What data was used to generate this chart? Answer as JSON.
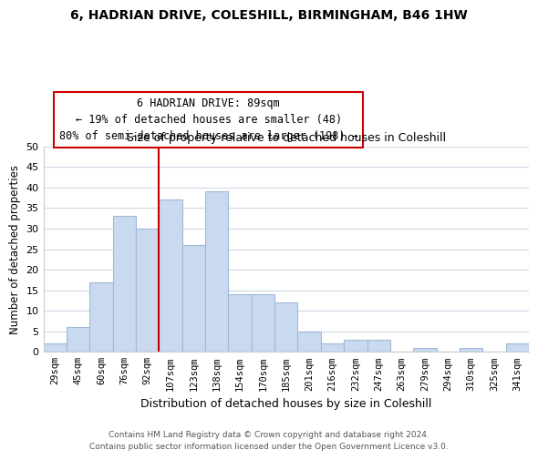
{
  "title": "6, HADRIAN DRIVE, COLESHILL, BIRMINGHAM, B46 1HW",
  "subtitle": "Size of property relative to detached houses in Coleshill",
  "xlabel": "Distribution of detached houses by size in Coleshill",
  "ylabel": "Number of detached properties",
  "bar_labels": [
    "29sqm",
    "45sqm",
    "60sqm",
    "76sqm",
    "92sqm",
    "107sqm",
    "123sqm",
    "138sqm",
    "154sqm",
    "170sqm",
    "185sqm",
    "201sqm",
    "216sqm",
    "232sqm",
    "247sqm",
    "263sqm",
    "279sqm",
    "294sqm",
    "310sqm",
    "325sqm",
    "341sqm"
  ],
  "bar_values": [
    2,
    6,
    17,
    33,
    30,
    37,
    26,
    39,
    14,
    14,
    12,
    5,
    2,
    3,
    3,
    0,
    1,
    0,
    1,
    0,
    2
  ],
  "bar_color": "#c9d9f0",
  "bar_edge_color": "#a0b8d8",
  "vline_index": 3,
  "vline_color": "#cc0000",
  "ylim": [
    0,
    50
  ],
  "yticks": [
    0,
    5,
    10,
    15,
    20,
    25,
    30,
    35,
    40,
    45,
    50
  ],
  "annotation_title": "6 HADRIAN DRIVE: 89sqm",
  "annotation_line1": "← 19% of detached houses are smaller (48)",
  "annotation_line2": "80% of semi-detached houses are larger (198) →",
  "annotation_box_edge": "#cc0000",
  "footer_line1": "Contains HM Land Registry data © Crown copyright and database right 2024.",
  "footer_line2": "Contains public sector information licensed under the Open Government Licence v3.0.",
  "background_color": "#ffffff",
  "grid_color": "#d0d8e8"
}
